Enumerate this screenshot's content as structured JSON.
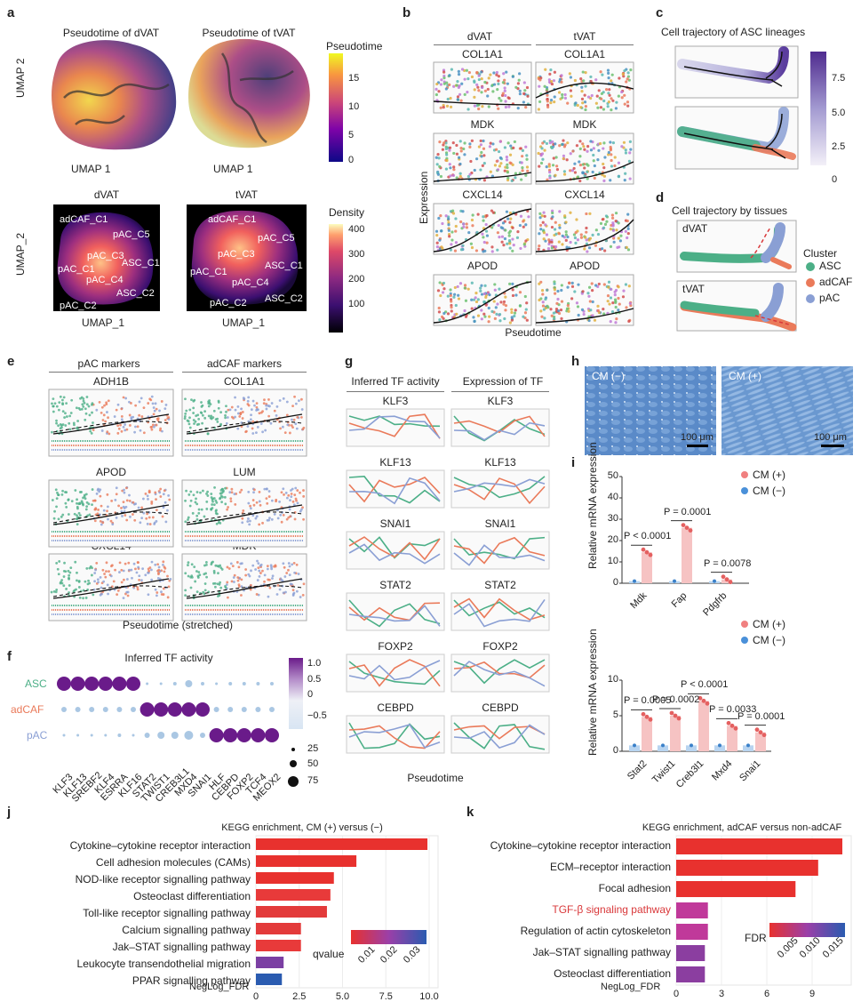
{
  "panels": {
    "a": "a",
    "b": "b",
    "c": "c",
    "d": "d",
    "e": "e",
    "f": "f",
    "g": "g",
    "h": "h",
    "i": "i",
    "j": "j",
    "k": "k"
  },
  "a": {
    "title_dvat": "Pseudotime of dVAT",
    "title_tvat": "Pseudotime of tVAT",
    "umap1": "UMAP 1",
    "umap2": "UMAP 2",
    "pt_title": "Pseudotime",
    "pt_ticks": [
      "15",
      "10",
      "5",
      "0"
    ],
    "dvat": "dVAT",
    "tvat": "tVAT",
    "umap_1": "UMAP_1",
    "umap_2": "UMAP_2",
    "density_title": "Density",
    "density_ticks": [
      "400",
      "300",
      "200",
      "100"
    ],
    "dvat_labels": [
      "adCAF_C1",
      "pAC_C5",
      "pAC_C3",
      "ASC_C1",
      "pAC_C1",
      "pAC_C4",
      "ASC_C2",
      "pAC_C2"
    ],
    "tvat_labels": [
      "adCAF_C1",
      "pAC_C5",
      "pAC_C3",
      "pAC_C1",
      "ASC_C1",
      "pAC_C4",
      "ASC_C2",
      "pAC_C2"
    ]
  },
  "b": {
    "col_dvat": "dVAT",
    "col_tvat": "tVAT",
    "genes": [
      "COL1A1",
      "MDK",
      "CXCL14",
      "APOD"
    ],
    "ylabel": "Expression",
    "xlabel": "Pseudotime"
  },
  "c": {
    "title": "Cell trajectory of ASC lineages",
    "ticks": [
      "7.5",
      "5.0",
      "2.5",
      "0"
    ]
  },
  "d": {
    "title": "Cell trajectory by tissues",
    "dvat": "dVAT",
    "tvat": "tVAT",
    "legend_title": "Cluster",
    "legend": [
      "ASC",
      "adCAF",
      "pAC"
    ]
  },
  "e": {
    "col1": "pAC markers",
    "col2": "adCAF markers",
    "genes_left": [
      "ADH1B",
      "APOD",
      "CXCL14"
    ],
    "genes_right": [
      "COL1A1",
      "LUM",
      "MDK"
    ],
    "xlabel": "Pseudotime (stretched)"
  },
  "f": {
    "title": "Inferred TF activity",
    "rows": [
      "ASC",
      "adCAF",
      "pAC"
    ],
    "cols": [
      "KLF3",
      "KLF13",
      "SREBF2",
      "KLF4",
      "ESRRA",
      "KLF16",
      "STAT2",
      "TWIST1",
      "CREB3L1",
      "MXD4",
      "SNAI1",
      "HLF",
      "CEBPD",
      "FOXP2",
      "TCF4",
      "MEOX2"
    ],
    "color_ticks": [
      "1.0",
      "0.5",
      "0",
      "−0.5"
    ],
    "size_ticks": [
      "25",
      "50",
      "75"
    ]
  },
  "g": {
    "col1": "Inferred TF activity",
    "col2": "Expression of TF",
    "genes": [
      "KLF3",
      "KLF13",
      "SNAI1",
      "STAT2",
      "FOXP2",
      "CEBPD"
    ],
    "xlabel": "Pseudotime"
  },
  "h": {
    "left": "CM (−)",
    "right": "CM (+)",
    "scale": "100 μm"
  },
  "i": {
    "ylabel": "Relative mRNA expression",
    "legend": [
      "CM (+)",
      "CM (−)"
    ],
    "top": {
      "genes": [
        "Mdk",
        "Fap",
        "Pdgfrb"
      ],
      "cm_plus": [
        14.5,
        26,
        1.8
      ],
      "cm_minus": [
        1,
        1,
        1
      ],
      "pvals": [
        "P < 0.0001",
        "P = 0.0001",
        "P = 0.0078"
      ],
      "yticks": [
        "50",
        "40",
        "30",
        "20",
        "10",
        "0"
      ]
    },
    "bottom": {
      "genes": [
        "Stat2",
        "Twist1",
        "Creb3l1",
        "Mxd4",
        "Snai1"
      ],
      "cm_plus": [
        5.8,
        6,
        8.5,
        4.3,
        3.2
      ],
      "cm_minus": [
        1,
        1,
        1,
        1,
        1
      ],
      "pvals": [
        "P = 0.0005",
        "P = 0.0002",
        "P < 0.0001",
        "P = 0.0033",
        "P = 0.0001"
      ],
      "yticks": [
        "10",
        "5",
        "0"
      ]
    }
  },
  "j": {
    "title": "KEGG enrichment, CM (+) versus (−)",
    "xlabel": "NegLog_FDR",
    "terms": [
      "Cytokine–cytokine receptor interaction",
      "Cell adhesion molecules (CAMs)",
      "NOD-like receptor signalling pathway",
      "Osteoclast differentiation",
      "Toll-like receptor signalling pathway",
      "Calcium signalling pathway",
      "Jak–STAT signalling pathway",
      "Leukocyte transendothelial migration",
      "PPAR signalling pathway"
    ],
    "values": [
      9.9,
      5.8,
      4.5,
      4.3,
      4.1,
      2.6,
      2.6,
      1.6,
      1.5
    ],
    "xticks": [
      "0",
      "2.5",
      "5.0",
      "7.5",
      "10.0"
    ],
    "legend_title": "qvalue",
    "legend_ticks": [
      "0.01",
      "0.02",
      "0.03"
    ]
  },
  "k": {
    "title": "KEGG enrichment, adCAF versus non-adCAF",
    "xlabel": "NegLog_FDR",
    "terms": [
      "Cytokine–cytokine receptor interaction",
      "ECM–receptor interaction",
      "Focal adhesion",
      "TGF-β signaling pathway",
      "Regulation of actin cytoskeleton",
      "Jak–STAT signalling pathway",
      "Osteoclast differentiation"
    ],
    "values": [
      11,
      9.4,
      7.9,
      2.1,
      2.1,
      1.9,
      1.9
    ],
    "xticks": [
      "0",
      "3",
      "6",
      "9"
    ],
    "legend_title": "FDR",
    "legend_ticks": [
      "0.005",
      "0.010",
      "0.015"
    ],
    "highlight_color": "#d9383a"
  },
  "colors": {
    "asc": "#4caf87",
    "adcaf": "#ea7a5a",
    "pac": "#8a9fd4",
    "red": "#e8413a",
    "purple": "#6d3fa0"
  }
}
